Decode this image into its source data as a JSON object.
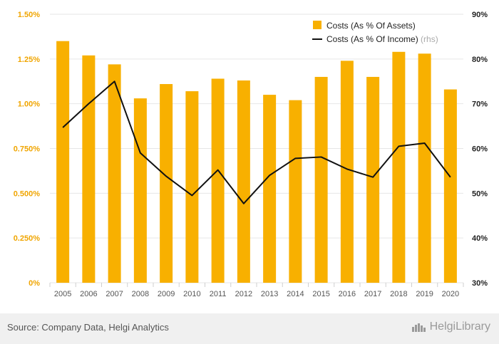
{
  "chart_data": {
    "type": "bar+line",
    "categories": [
      "2005",
      "2006",
      "2007",
      "2008",
      "2009",
      "2010",
      "2011",
      "2012",
      "2013",
      "2014",
      "2015",
      "2016",
      "2017",
      "2018",
      "2019",
      "2020"
    ],
    "series": [
      {
        "name": "Costs (As % Of Assets)",
        "axis": "left",
        "kind": "bar",
        "values": [
          1.35,
          1.27,
          1.22,
          1.03,
          1.11,
          1.07,
          1.14,
          1.13,
          1.05,
          1.02,
          1.15,
          1.24,
          1.15,
          1.29,
          1.28,
          1.08
        ]
      },
      {
        "name": "Costs (As % Of Income)",
        "suffix": "(rhs)",
        "axis": "right",
        "kind": "line",
        "values": [
          64.7,
          70.0,
          75.0,
          59.0,
          53.8,
          49.5,
          55.2,
          47.7,
          54.0,
          57.8,
          58.1,
          55.4,
          53.6,
          60.5,
          61.2,
          53.6
        ]
      }
    ],
    "left_axis": {
      "min": 0,
      "max": 1.5,
      "ticks": [
        "0%",
        "0.250%",
        "0.500%",
        "0.750%",
        "1.00%",
        "1.25%",
        "1.50%"
      ]
    },
    "right_axis": {
      "min": 30,
      "max": 90,
      "ticks": [
        "30%",
        "40%",
        "50%",
        "60%",
        "70%",
        "80%",
        "90%"
      ]
    },
    "grid": true,
    "legend_position": "top-right"
  },
  "colors": {
    "bar": "#f8b000",
    "line": "#111111",
    "grid": "#e6e6e6",
    "left_tick": "#f0a500",
    "right_tick": "#222222"
  },
  "footer": {
    "source": "Source: Company Data, Helgi Analytics",
    "brand": "HelgiLibrary"
  }
}
